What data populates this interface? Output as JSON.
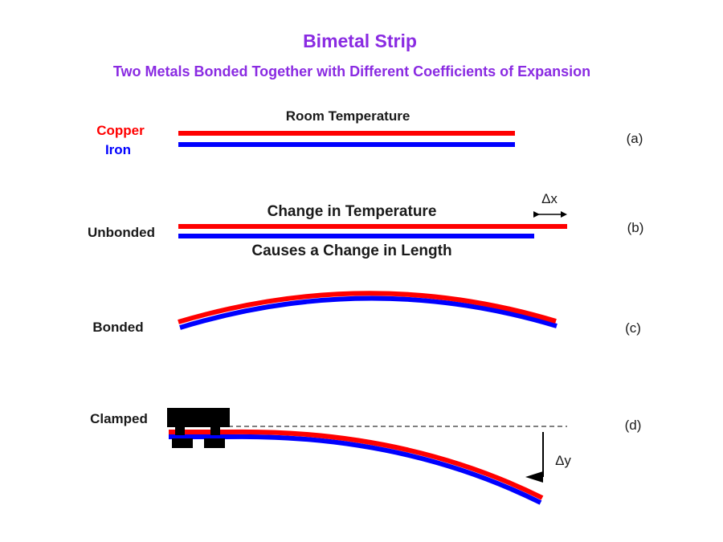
{
  "title": "Bimetal Strip",
  "subtitle": "Two Metals Bonded Together with Different Coefficients of Expansion",
  "colors": {
    "title": "#8a2be2",
    "copper": "#ff0000",
    "iron": "#0000ff",
    "clamp": "#000000",
    "text": "#1a1a1a"
  },
  "panels": {
    "a": {
      "heading": "Room Temperature",
      "label_copper": "Copper",
      "label_iron": "Iron",
      "tag": "(a)"
    },
    "b": {
      "heading": "Change in Temperature",
      "caption": "Causes a Change in Length",
      "label": "Unbonded",
      "delta_label": "Δx",
      "tag": "(b)"
    },
    "c": {
      "label": "Bonded",
      "tag": "(c)"
    },
    "d": {
      "label": "Clamped",
      "delta_label": "Δy",
      "tag": "(d)"
    }
  }
}
